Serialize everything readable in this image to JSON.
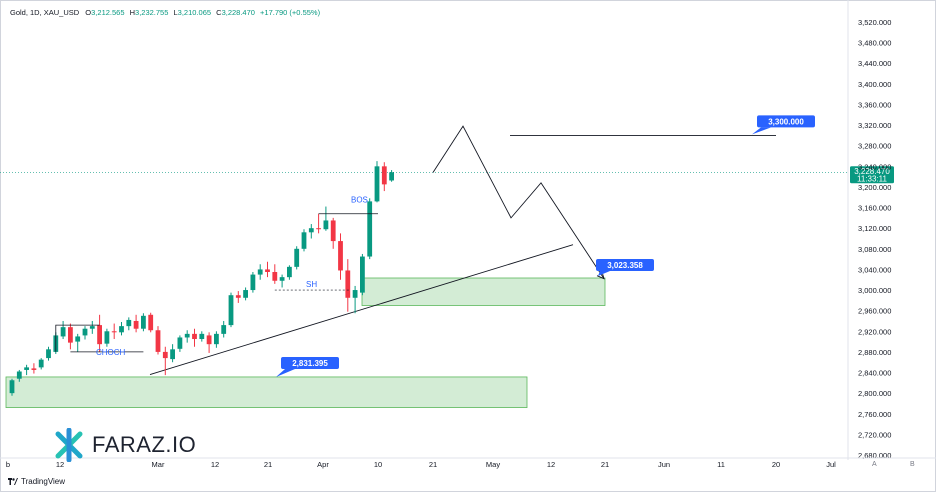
{
  "header": {
    "symbol": "Gold, 1D, XAU_USD",
    "open_label": "O",
    "open": "3,212.565",
    "high_label": "H",
    "high": "3,232.755",
    "low_label": "L",
    "low": "3,210.065",
    "close_label": "C",
    "close": "3,228.470",
    "change": "+17.790 (+0.55%)"
  },
  "colors": {
    "up": "#089981",
    "down": "#f23645",
    "zone_fill": "#d3ecd5",
    "zone_border": "#5cb85c",
    "label_bg": "#2962ff",
    "price_tag": "#089981"
  },
  "price_tag": {
    "value": "3,228.470",
    "countdown": "11:33:11"
  },
  "annotations": {
    "target_label": "3,300.000",
    "zone_label_upper": "3,023.358",
    "zone_label_lower": "2,831.395",
    "bos": "BOS",
    "choch": "CHOCH",
    "sh": "SH"
  },
  "footer": {
    "tradingview": "TradingView",
    "axis_a": "A",
    "axis_settings": "B"
  },
  "brand": {
    "name": "FARAZ.IO"
  },
  "chart_data": {
    "type": "candlestick",
    "title": "Gold, 1D, XAU_USD",
    "ylim": [
      2680,
      3540
    ],
    "y_ticks": [
      "3,520.000",
      "3,480.000",
      "3,440.000",
      "3,400.000",
      "3,360.000",
      "3,320.000",
      "3,280.000",
      "3,240.000",
      "3,200.000",
      "3,160.000",
      "3,120.000",
      "3,080.000",
      "3,040.000",
      "3,000.000",
      "2,960.000",
      "2,920.000",
      "2,880.000",
      "2,840.000",
      "2,800.000",
      "2,760.000",
      "2,720.000",
      "2,680.000"
    ],
    "x_ticks": [
      "b",
      "12",
      "Mar",
      "12",
      "21",
      "Apr",
      "10",
      "21",
      "May",
      "12",
      "21",
      "Jun",
      "11",
      "20",
      "Jul"
    ],
    "last_price": 3228.47,
    "candles": [
      {
        "o": 2800,
        "h": 2828,
        "l": 2795,
        "c": 2825
      },
      {
        "o": 2828,
        "h": 2845,
        "l": 2822,
        "c": 2842
      },
      {
        "o": 2845,
        "h": 2855,
        "l": 2835,
        "c": 2850
      },
      {
        "o": 2848,
        "h": 2858,
        "l": 2838,
        "c": 2845
      },
      {
        "o": 2850,
        "h": 2868,
        "l": 2846,
        "c": 2865
      },
      {
        "o": 2868,
        "h": 2890,
        "l": 2863,
        "c": 2885
      },
      {
        "o": 2880,
        "h": 2918,
        "l": 2876,
        "c": 2912
      },
      {
        "o": 2910,
        "h": 2940,
        "l": 2905,
        "c": 2928
      },
      {
        "o": 2928,
        "h": 2935,
        "l": 2885,
        "c": 2898
      },
      {
        "o": 2900,
        "h": 2915,
        "l": 2880,
        "c": 2910
      },
      {
        "o": 2912,
        "h": 2930,
        "l": 2904,
        "c": 2925
      },
      {
        "o": 2925,
        "h": 2940,
        "l": 2915,
        "c": 2930
      },
      {
        "o": 2932,
        "h": 2952,
        "l": 2880,
        "c": 2895
      },
      {
        "o": 2896,
        "h": 2925,
        "l": 2890,
        "c": 2920
      },
      {
        "o": 2920,
        "h": 2935,
        "l": 2905,
        "c": 2918
      },
      {
        "o": 2918,
        "h": 2938,
        "l": 2912,
        "c": 2930
      },
      {
        "o": 2930,
        "h": 2947,
        "l": 2922,
        "c": 2942
      },
      {
        "o": 2940,
        "h": 2952,
        "l": 2918,
        "c": 2925
      },
      {
        "o": 2925,
        "h": 2955,
        "l": 2920,
        "c": 2950
      },
      {
        "o": 2952,
        "h": 2956,
        "l": 2918,
        "c": 2922
      },
      {
        "o": 2922,
        "h": 2930,
        "l": 2875,
        "c": 2880
      },
      {
        "o": 2880,
        "h": 2890,
        "l": 2835,
        "c": 2868
      },
      {
        "o": 2866,
        "h": 2895,
        "l": 2860,
        "c": 2885
      },
      {
        "o": 2886,
        "h": 2912,
        "l": 2880,
        "c": 2908
      },
      {
        "o": 2908,
        "h": 2922,
        "l": 2898,
        "c": 2915
      },
      {
        "o": 2915,
        "h": 2925,
        "l": 2890,
        "c": 2905
      },
      {
        "o": 2905,
        "h": 2920,
        "l": 2900,
        "c": 2915
      },
      {
        "o": 2912,
        "h": 2918,
        "l": 2878,
        "c": 2895
      },
      {
        "o": 2895,
        "h": 2920,
        "l": 2888,
        "c": 2915
      },
      {
        "o": 2915,
        "h": 2940,
        "l": 2908,
        "c": 2932
      },
      {
        "o": 2932,
        "h": 2995,
        "l": 2928,
        "c": 2990
      },
      {
        "o": 2990,
        "h": 2998,
        "l": 2975,
        "c": 2985
      },
      {
        "o": 2985,
        "h": 3005,
        "l": 2980,
        "c": 3000
      },
      {
        "o": 3000,
        "h": 3035,
        "l": 2995,
        "c": 3030
      },
      {
        "o": 3030,
        "h": 3050,
        "l": 3020,
        "c": 3040
      },
      {
        "o": 3040,
        "h": 3055,
        "l": 3025,
        "c": 3035
      },
      {
        "o": 3035,
        "h": 3050,
        "l": 3012,
        "c": 3018
      },
      {
        "o": 3018,
        "h": 3030,
        "l": 3005,
        "c": 3025
      },
      {
        "o": 3025,
        "h": 3048,
        "l": 3020,
        "c": 3045
      },
      {
        "o": 3045,
        "h": 3085,
        "l": 3040,
        "c": 3080
      },
      {
        "o": 3080,
        "h": 3118,
        "l": 3075,
        "c": 3112
      },
      {
        "o": 3112,
        "h": 3128,
        "l": 3100,
        "c": 3120
      },
      {
        "o": 3120,
        "h": 3148,
        "l": 3110,
        "c": 3118
      },
      {
        "o": 3118,
        "h": 3162,
        "l": 3115,
        "c": 3135
      },
      {
        "o": 3135,
        "h": 3140,
        "l": 3080,
        "c": 3095
      },
      {
        "o": 3095,
        "h": 3110,
        "l": 3020,
        "c": 3038
      },
      {
        "o": 3038,
        "h": 3060,
        "l": 2958,
        "c": 2985
      },
      {
        "o": 2985,
        "h": 3008,
        "l": 2955,
        "c": 3000
      },
      {
        "o": 2995,
        "h": 3070,
        "l": 2990,
        "c": 3065
      },
      {
        "o": 3065,
        "h": 3178,
        "l": 3060,
        "c": 3172
      },
      {
        "o": 3172,
        "h": 3250,
        "l": 3170,
        "c": 3240
      },
      {
        "o": 3240,
        "h": 3248,
        "l": 3192,
        "c": 3205
      },
      {
        "o": 3212.565,
        "h": 3232.755,
        "l": 3210.065,
        "c": 3228.47
      }
    ],
    "zones": [
      {
        "y_top": 3023.358,
        "y_bottom": 2970
      },
      {
        "y_top": 2831.395,
        "y_bottom": 2772
      }
    ],
    "target_level": 3300.0,
    "projection_path": [
      3228,
      3318,
      3140,
      3208,
      3022
    ]
  }
}
